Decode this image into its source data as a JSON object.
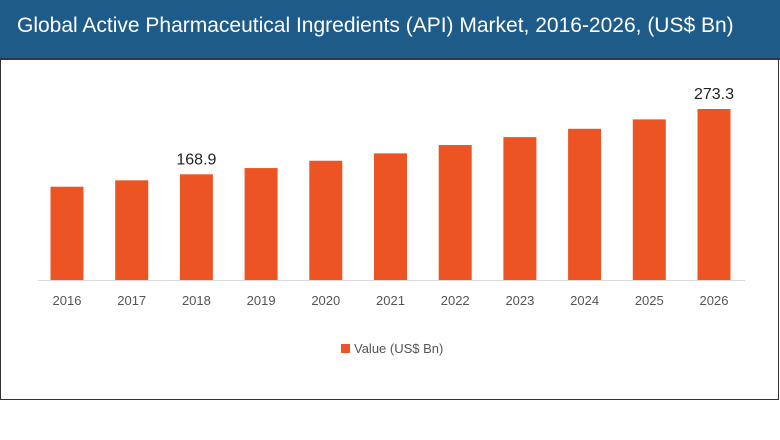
{
  "chart_data": {
    "type": "bar",
    "title": "Global Active Pharmaceutical Ingredients (API) Market, 2016-2026, (US$ Bn)",
    "xlabel": "",
    "ylabel": "",
    "categories": [
      "2016",
      "2017",
      "2018",
      "2019",
      "2020",
      "2021",
      "2022",
      "2023",
      "2024",
      "2025",
      "2026"
    ],
    "series": [
      {
        "name": "Value (US$ Bn)",
        "values": [
          149.1,
          159.3,
          168.9,
          178.9,
          190.6,
          202.4,
          215.7,
          228.4,
          241.7,
          256.7,
          273.3
        ],
        "color": "#ec5424"
      }
    ],
    "data_labels": [
      {
        "category": "2018",
        "text": "168.9"
      },
      {
        "category": "2026",
        "text": "273.3"
      }
    ],
    "ylim": [
      0,
      300
    ],
    "grid": false,
    "y_axis_shown": false,
    "legend": "bottom"
  },
  "colors": {
    "header": "#1f5b89",
    "bar": "#ec5424"
  }
}
